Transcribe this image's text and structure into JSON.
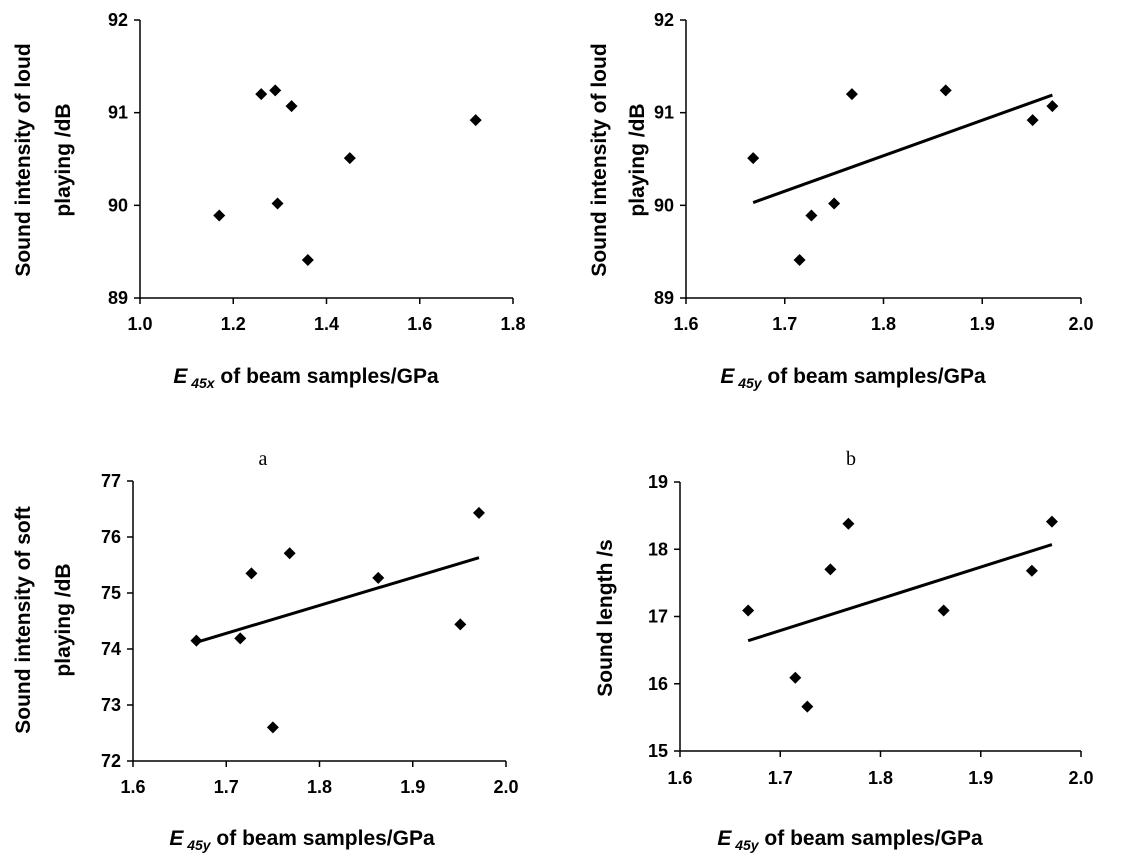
{
  "chart_data": [
    {
      "type": "scatter",
      "panel_label": "a",
      "ylabel_lines": [
        "Sound intensity of loud",
        "playing /dB"
      ],
      "xlabel": {
        "symbol": "E",
        "subscript": "45x",
        "text": " of beam samples/GPa"
      },
      "xlim": [
        1.0,
        1.8
      ],
      "ylim": [
        89,
        92
      ],
      "xticks": [
        "1.0",
        "1.2",
        "1.4",
        "1.6",
        "1.8"
      ],
      "yticks": [
        "89",
        "90",
        "91",
        "92"
      ],
      "points": [
        {
          "x": 1.17,
          "y": 89.89
        },
        {
          "x": 1.26,
          "y": 91.2
        },
        {
          "x": 1.29,
          "y": 91.24
        },
        {
          "x": 1.295,
          "y": 90.02
        },
        {
          "x": 1.325,
          "y": 91.07
        },
        {
          "x": 1.36,
          "y": 89.41
        },
        {
          "x": 1.45,
          "y": 90.51
        },
        {
          "x": 1.72,
          "y": 90.92
        }
      ],
      "trendline": null,
      "grid": false
    },
    {
      "type": "scatter",
      "panel_label": "b",
      "ylabel_lines": [
        "Sound intensity of loud",
        "playing /dB"
      ],
      "xlabel": {
        "symbol": "E",
        "subscript": "45y",
        "text": " of beam samples/GPa"
      },
      "xlim": [
        1.6,
        2.0
      ],
      "ylim": [
        89,
        92
      ],
      "xticks": [
        "1.6",
        "1.7",
        "1.8",
        "1.9",
        "2.0"
      ],
      "yticks": [
        "89",
        "90",
        "91",
        "92"
      ],
      "points": [
        {
          "x": 1.668,
          "y": 90.51
        },
        {
          "x": 1.715,
          "y": 89.41
        },
        {
          "x": 1.727,
          "y": 89.89
        },
        {
          "x": 1.75,
          "y": 90.02
        },
        {
          "x": 1.768,
          "y": 91.2
        },
        {
          "x": 1.863,
          "y": 91.24
        },
        {
          "x": 1.951,
          "y": 90.92
        },
        {
          "x": 1.971,
          "y": 91.07
        }
      ],
      "trendline": {
        "x": [
          1.668,
          1.971
        ],
        "y": [
          90.03,
          91.19
        ]
      },
      "grid": false
    },
    {
      "type": "scatter",
      "panel_label": "",
      "ylabel_lines": [
        "Sound intensity of soft",
        "playing /dB"
      ],
      "xlabel": {
        "symbol": "E",
        "subscript": "45y",
        "text": " of beam samples/GPa"
      },
      "xlim": [
        1.6,
        2.0
      ],
      "ylim": [
        72,
        77
      ],
      "xticks": [
        "1.6",
        "1.7",
        "1.8",
        "1.9",
        "2.0"
      ],
      "yticks": [
        "72",
        "73",
        "74",
        "75",
        "76",
        "77"
      ],
      "points": [
        {
          "x": 1.668,
          "y": 74.15
        },
        {
          "x": 1.715,
          "y": 74.19
        },
        {
          "x": 1.727,
          "y": 75.35
        },
        {
          "x": 1.75,
          "y": 72.6
        },
        {
          "x": 1.768,
          "y": 75.71
        },
        {
          "x": 1.863,
          "y": 75.27
        },
        {
          "x": 1.951,
          "y": 74.44
        },
        {
          "x": 1.971,
          "y": 76.43
        }
      ],
      "trendline": {
        "x": [
          1.668,
          1.971
        ],
        "y": [
          74.12,
          75.63
        ]
      },
      "grid": false
    },
    {
      "type": "scatter",
      "panel_label": "",
      "ylabel_lines": [
        "Sound length /s"
      ],
      "xlabel": {
        "symbol": "E",
        "subscript": "45y",
        "text": " of beam samples/GPa"
      },
      "xlim": [
        1.6,
        2.0
      ],
      "ylim": [
        15,
        19
      ],
      "xticks": [
        "1.6",
        "1.7",
        "1.8",
        "1.9",
        "2.0"
      ],
      "yticks": [
        "15",
        "16",
        "17",
        "18",
        "19"
      ],
      "points": [
        {
          "x": 1.668,
          "y": 17.09
        },
        {
          "x": 1.715,
          "y": 16.09
        },
        {
          "x": 1.727,
          "y": 15.66
        },
        {
          "x": 1.75,
          "y": 17.7
        },
        {
          "x": 1.768,
          "y": 18.38
        },
        {
          "x": 1.863,
          "y": 17.09
        },
        {
          "x": 1.951,
          "y": 17.68
        },
        {
          "x": 1.971,
          "y": 18.41
        }
      ],
      "trendline": {
        "x": [
          1.668,
          1.971
        ],
        "y": [
          16.64,
          18.07
        ]
      },
      "grid": false
    }
  ]
}
